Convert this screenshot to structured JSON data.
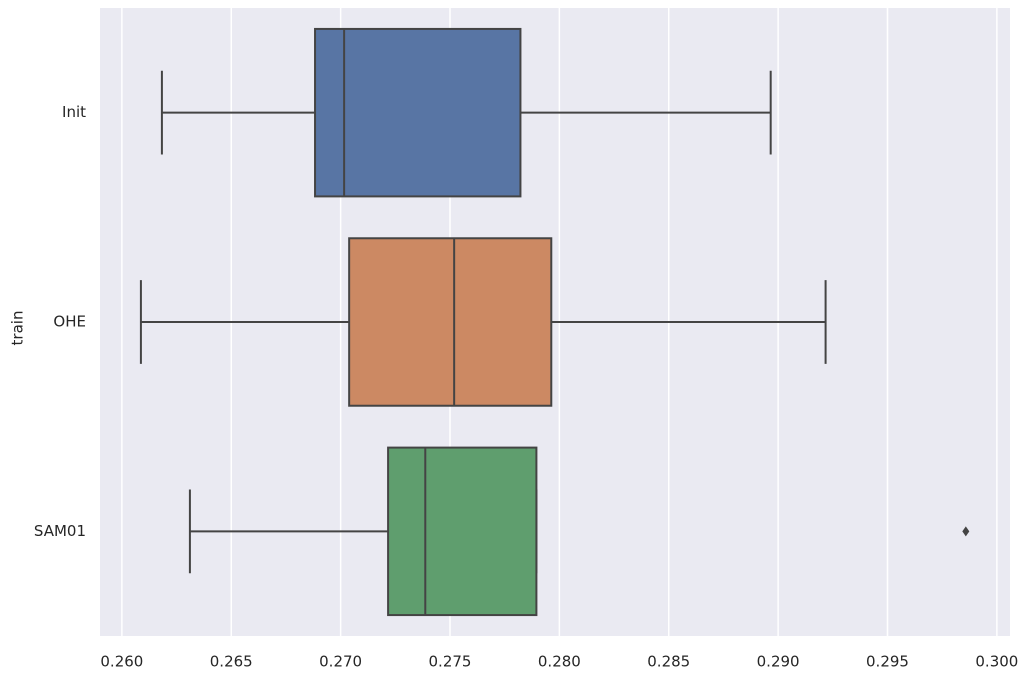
{
  "chart_data": {
    "type": "boxplot",
    "orientation": "horizontal",
    "ylabel": "train",
    "categories": [
      "Init",
      "OHE",
      "SAM01"
    ],
    "boxes": [
      {
        "color": "#5875a4",
        "whislo": 0.26183,
        "q1": 0.26883,
        "med": 0.27016,
        "q3": 0.27822,
        "whishi": 0.28966,
        "fliers": []
      },
      {
        "color": "#cc8963",
        "whislo": 0.26087,
        "q1": 0.27039,
        "med": 0.27519,
        "q3": 0.27963,
        "whishi": 0.29217,
        "fliers": []
      },
      {
        "color": "#5f9e6e",
        "whislo": 0.26311,
        "q1": 0.27217,
        "med": 0.27387,
        "q3": 0.27895,
        "whishi": 0.27895,
        "fliers": [
          0.29858
        ]
      }
    ],
    "xlim": [
      0.259,
      0.3006
    ],
    "xticks": [
      {
        "value": 0.26,
        "label": "0.260"
      },
      0.265,
      {
        "value": 0.27,
        "label": "0.270"
      },
      0.275,
      {
        "value": 0.28,
        "label": "0.280"
      },
      0.285,
      {
        "value": 0.29,
        "label": "0.290"
      },
      0.295,
      {
        "value": 0.3,
        "label": "0.300"
      }
    ],
    "grid": true,
    "background": "#eaeaf2"
  }
}
